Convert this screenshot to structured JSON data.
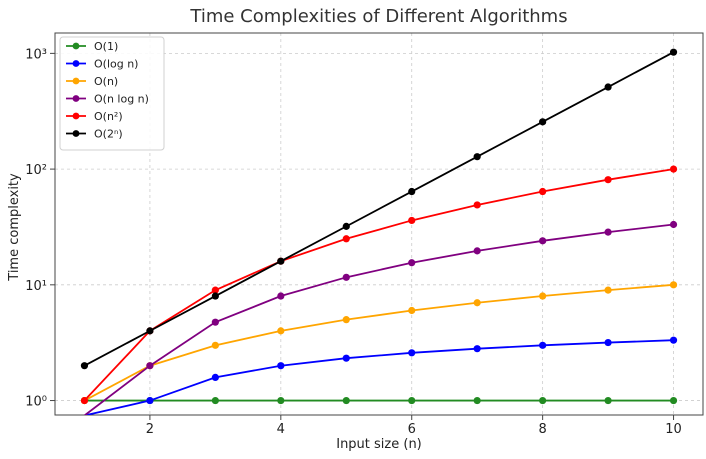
{
  "chart_data": {
    "type": "line",
    "title": "Time Complexities of Different Algorithms",
    "xlabel": "Input size (n)",
    "ylabel": "Time complexity",
    "yscale": "log",
    "xlim": [
      0.55,
      10.45
    ],
    "ylim": [
      0.75,
      1500
    ],
    "x_ticks": [
      2,
      4,
      6,
      8,
      10
    ],
    "y_ticks": [
      {
        "value": 1,
        "label": "10⁰"
      },
      {
        "value": 10,
        "label": "10¹"
      },
      {
        "value": 100,
        "label": "10²"
      },
      {
        "value": 1000,
        "label": "10³"
      }
    ],
    "grid": true,
    "legend_position": "top-left",
    "x": [
      1,
      2,
      3,
      4,
      5,
      6,
      7,
      8,
      9,
      10
    ],
    "series": [
      {
        "name": "O(1)",
        "color": "#228b22",
        "values": [
          1,
          1,
          1,
          1,
          1,
          1,
          1,
          1,
          1,
          1
        ]
      },
      {
        "name": "O(log n)",
        "color": "#0000ff",
        "values": [
          0.01,
          1,
          1.585,
          2,
          2.322,
          2.585,
          2.807,
          3,
          3.17,
          3.322
        ]
      },
      {
        "name": "O(n)",
        "color": "#ffa500",
        "values": [
          1,
          2,
          3,
          4,
          5,
          6,
          7,
          8,
          9,
          10
        ]
      },
      {
        "name": "O(n log n)",
        "color": "#800080",
        "values": [
          0.01,
          2,
          4.755,
          8,
          11.61,
          15.51,
          19.65,
          24,
          28.53,
          33.22
        ]
      },
      {
        "name": "O(n²)",
        "color": "#ff0000",
        "values": [
          1,
          4,
          9,
          16,
          25,
          36,
          49,
          64,
          81,
          100
        ]
      },
      {
        "name": "O(2ⁿ)",
        "color": "#000000",
        "values": [
          2,
          4,
          8,
          16,
          32,
          64,
          128,
          256,
          512,
          1024
        ]
      }
    ]
  }
}
